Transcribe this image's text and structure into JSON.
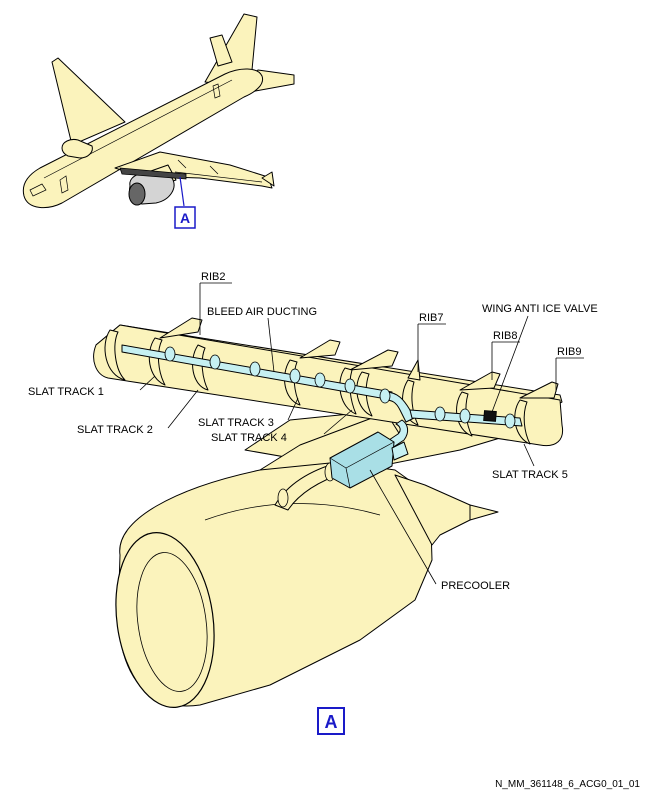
{
  "figure_id": "N_MM_361148_6_ACG0_01_01",
  "detail_ref": "A",
  "labels": {
    "rib2": "RIB2",
    "rib7": "RIB7",
    "rib8": "RIB8",
    "rib9": "RIB9",
    "bleed_air_ducting": "BLEED AIR DUCTING",
    "wing_anti_ice_valve": "WING ANTI ICE VALVE",
    "slat_track_1": "SLAT TRACK 1",
    "slat_track_2": "SLAT TRACK 2",
    "slat_track_3": "SLAT TRACK 3",
    "slat_track_4": "SLAT TRACK 4",
    "slat_track_5": "SLAT TRACK 5",
    "precooler": "PRECOOLER"
  },
  "colors": {
    "airframe": "#fbf3bc",
    "duct": "#c6f0f2",
    "precooler": "#a9dfe6",
    "valve": "#111111",
    "ref_box": "#1a1ac8",
    "outline": "#000000"
  }
}
